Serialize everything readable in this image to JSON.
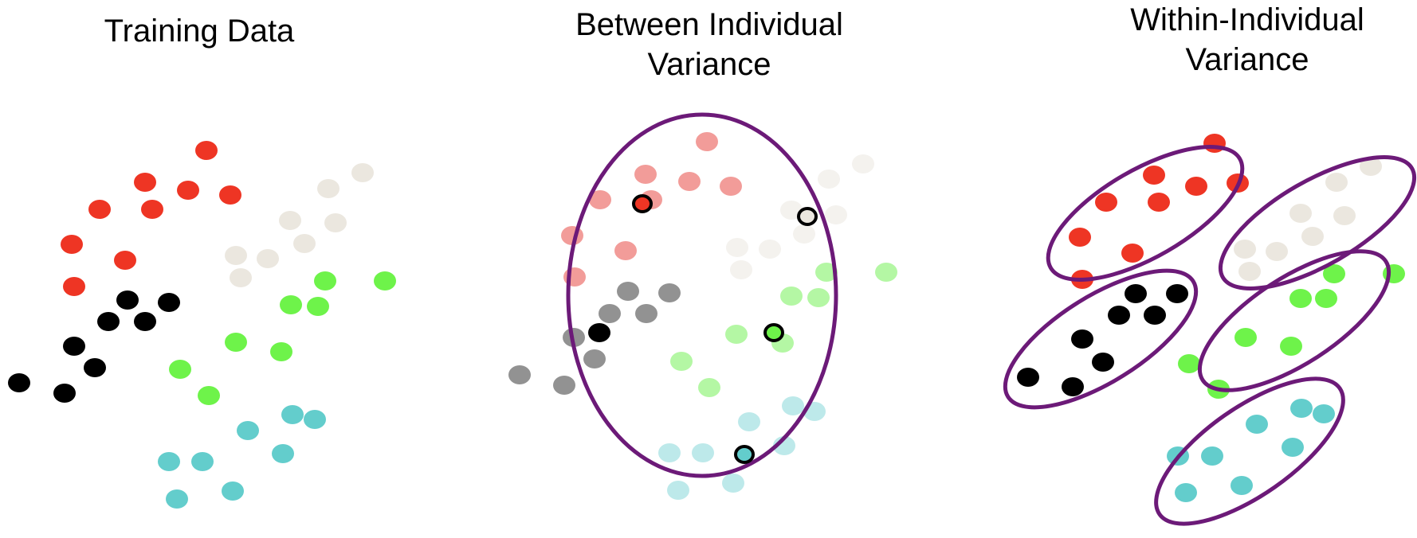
{
  "titles": {
    "training": "Training Data",
    "between": "Between Individual\nVariance",
    "within": "Within-Individual\nVariance"
  },
  "colors": {
    "red": "#ee3524",
    "red_faded": "#f29c99",
    "offwhite": "#ebe7df",
    "offwhite_faded": "#f4f2ee",
    "black": "#000000",
    "black_faded": "#929292",
    "green": "#6ef34a",
    "green_faded": "#b4f7a4",
    "teal": "#63cdcc",
    "teal_faded": "#bde9ea",
    "ellipse": "#6c1a78",
    "highlight_ring": "#000000"
  },
  "groups": [
    "red",
    "offwhite",
    "black",
    "green",
    "teal"
  ]
}
